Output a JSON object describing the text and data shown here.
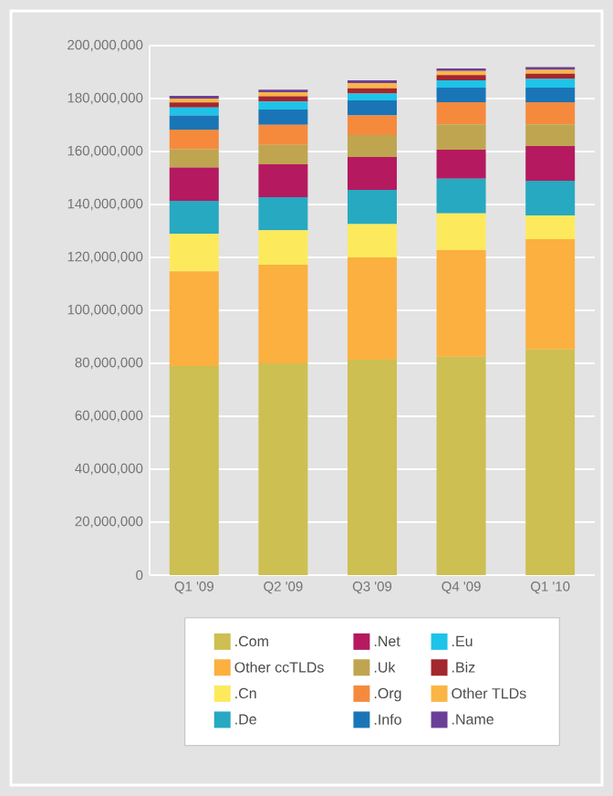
{
  "chart_data": {
    "type": "bar",
    "stacked": true,
    "categories": [
      "Q1 '09",
      "Q2 '09",
      "Q3 '09",
      "Q4 '09",
      "Q1 '10"
    ],
    "series": [
      {
        "name": ".Com",
        "color": "#cdbf52",
        "values": [
          79000000,
          80000000,
          81400000,
          82500000,
          85300000
        ]
      },
      {
        "name": "Other ccTLDs",
        "color": "#fbb040",
        "values": [
          35700000,
          37200000,
          38600000,
          40300000,
          41600000
        ]
      },
      {
        "name": ".Cn",
        "color": "#fdea5c",
        "values": [
          14300000,
          13100000,
          12600000,
          13800000,
          9000000
        ]
      },
      {
        "name": ".De",
        "color": "#27a9c1",
        "values": [
          12400000,
          12500000,
          12900000,
          13100000,
          13100000
        ]
      },
      {
        "name": ".Net",
        "color": "#b5195f",
        "values": [
          12600000,
          12400000,
          12400000,
          11000000,
          13100000
        ]
      },
      {
        "name": ".Uk",
        "color": "#bfa550",
        "values": [
          6900000,
          7300000,
          8300000,
          9600000,
          8200000
        ]
      },
      {
        "name": ".Org",
        "color": "#f58a3d",
        "values": [
          7400000,
          7600000,
          7400000,
          8300000,
          8300000
        ]
      },
      {
        "name": ".Info",
        "color": "#1a75b7",
        "values": [
          5300000,
          5800000,
          5700000,
          5500000,
          5500000
        ]
      },
      {
        "name": ".Eu",
        "color": "#1ec3e8",
        "values": [
          3000000,
          3000000,
          2600000,
          2800000,
          3300000
        ]
      },
      {
        "name": ".Biz",
        "color": "#a3272e",
        "values": [
          1900000,
          2000000,
          2000000,
          2000000,
          2000000
        ]
      },
      {
        "name": "Other TLDs",
        "color": "#fbb545",
        "values": [
          1500000,
          1500000,
          2000000,
          1500000,
          1500000
        ]
      },
      {
        "name": ".Name",
        "color": "#6b3f98",
        "values": [
          1000000,
          1000000,
          1000000,
          1000000,
          1000000
        ]
      }
    ],
    "ylim": [
      0,
      200000000
    ],
    "yticks": [
      {
        "value": 0,
        "label": "0"
      },
      {
        "value": 20000000,
        "label": "20,000,000"
      },
      {
        "value": 40000000,
        "label": "40,000,000"
      },
      {
        "value": 60000000,
        "label": "60,000,000"
      },
      {
        "value": 80000000,
        "label": "80,000,000"
      },
      {
        "value": 100000000,
        "label": "100,000,000"
      },
      {
        "value": 120000000,
        "label": "120,000,000"
      },
      {
        "value": 140000000,
        "label": "140,000,000"
      },
      {
        "value": 160000000,
        "label": "160,000,000"
      },
      {
        "value": 180000000,
        "label": "180,000,000"
      },
      {
        "value": 200000000,
        "label": "200,000,000"
      }
    ],
    "grid": "y",
    "legend": "bottom"
  }
}
